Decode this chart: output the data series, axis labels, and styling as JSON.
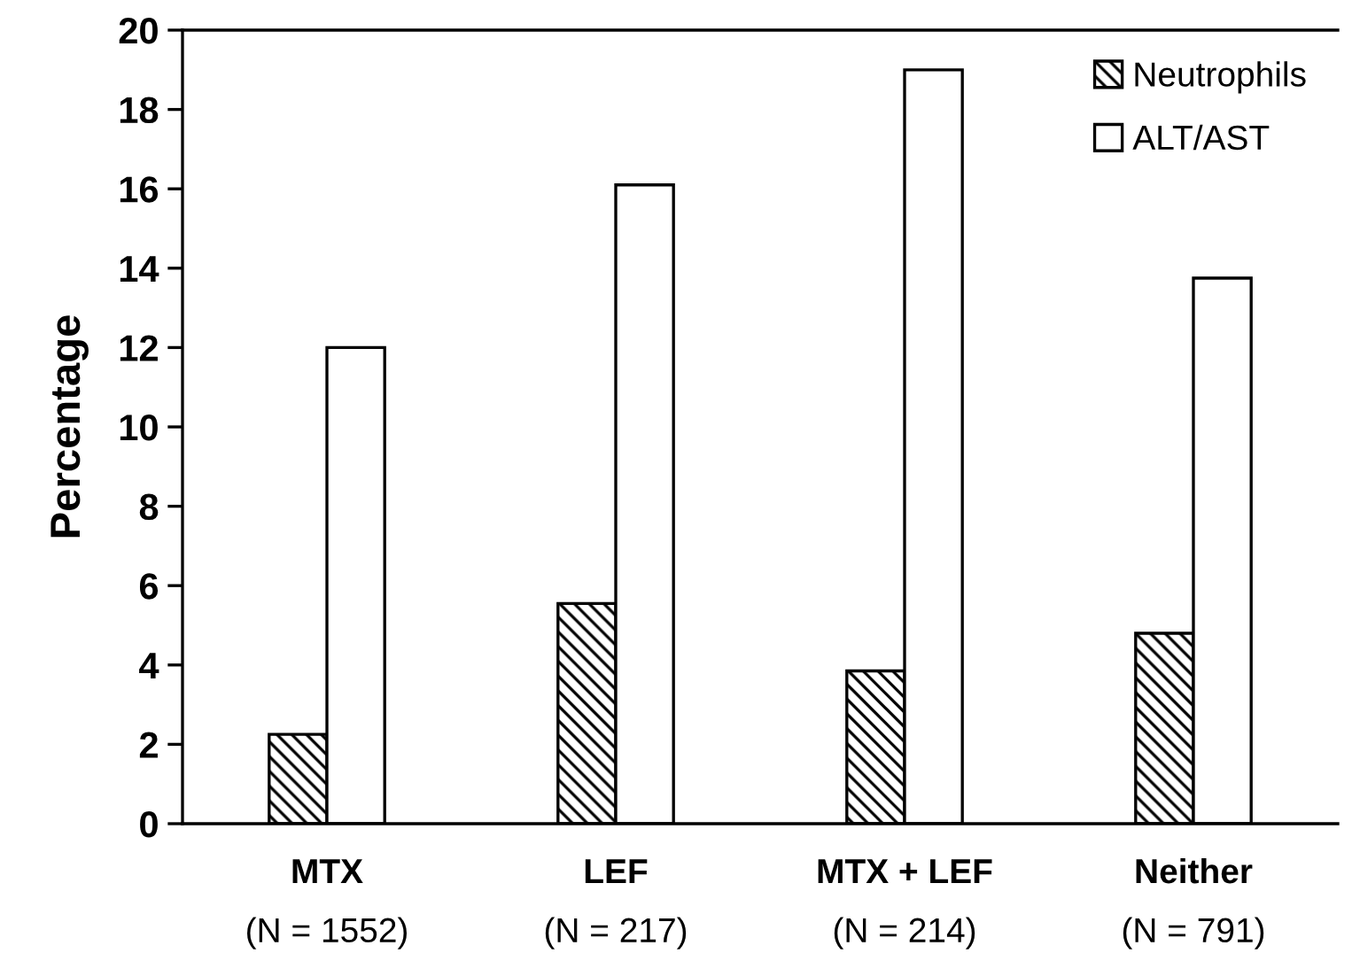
{
  "chart_data": {
    "type": "bar",
    "ylabel": "Percentage",
    "categories": [
      "MTX\n(N = 1552)",
      "LEF\n(N = 217)",
      "MTX + LEF\n(N = 214)",
      "Neither\n(N = 791)"
    ],
    "series": [
      {
        "name": "Neutrophils",
        "color": "#000000",
        "values": [
          2.25,
          5.55,
          3.85,
          4.8
        ]
      },
      {
        "name": "ALT/AST",
        "color": "#ffffff",
        "values": [
          12.0,
          16.1,
          19.0,
          13.75
        ]
      }
    ],
    "ylim": [
      0,
      20
    ],
    "yticks": [
      0,
      2,
      4,
      6,
      8,
      10,
      12,
      14,
      16,
      18,
      20
    ],
    "grid": false,
    "legend": "top right"
  }
}
